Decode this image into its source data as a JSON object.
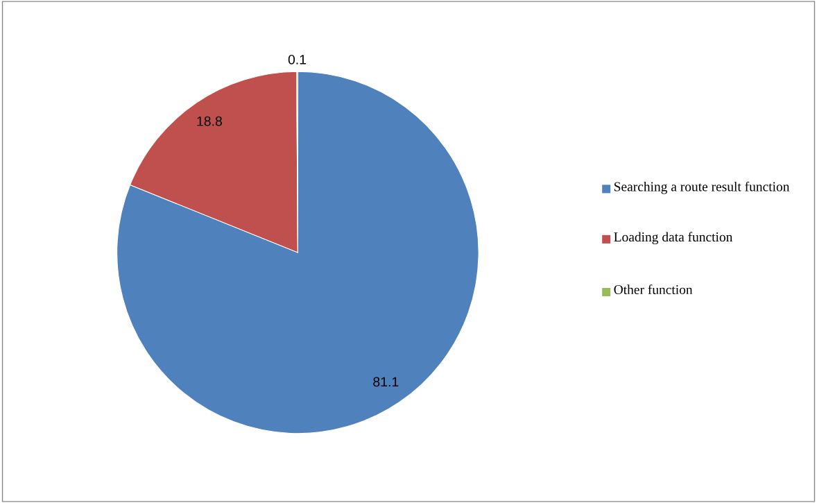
{
  "chart_data": {
    "type": "pie",
    "categories": [
      "Searching a route result function",
      "Loading data function",
      "Other function"
    ],
    "values": [
      81.1,
      18.8,
      0.1
    ],
    "colors": [
      "#4f81bd",
      "#c0504d",
      "#9bbb59"
    ],
    "data_labels": true,
    "legend": "right"
  }
}
